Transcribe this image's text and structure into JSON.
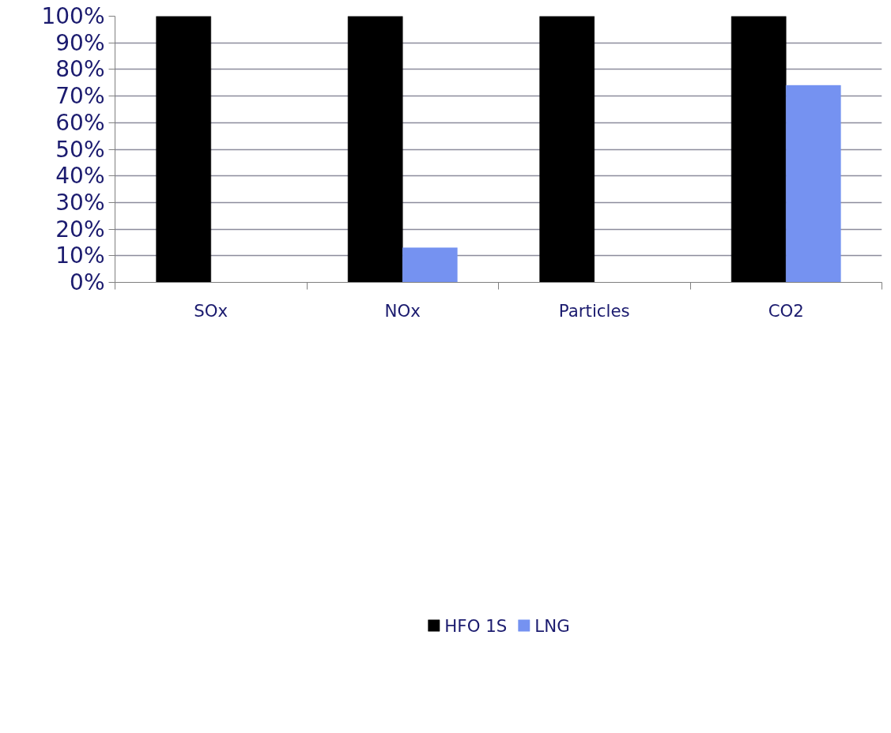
{
  "chart_data": {
    "type": "bar",
    "categories": [
      "SOx",
      "NOx",
      "Particles",
      "CO2"
    ],
    "series": [
      {
        "name": "HFO 1S",
        "color": "#000000",
        "values": [
          100,
          100,
          100,
          100
        ]
      },
      {
        "name": "LNG",
        "color": "#7592f1",
        "values": [
          0,
          13,
          0,
          74
        ]
      }
    ],
    "ylim": [
      0,
      100
    ],
    "yticks": [
      {
        "value": 0,
        "label": "0%"
      },
      {
        "value": 10,
        "label": "10%"
      },
      {
        "value": 20,
        "label": "20%"
      },
      {
        "value": 30,
        "label": "30%"
      },
      {
        "value": 40,
        "label": "40%"
      },
      {
        "value": 50,
        "label": "50%"
      },
      {
        "value": 60,
        "label": "60%"
      },
      {
        "value": 70,
        "label": "70%"
      },
      {
        "value": 80,
        "label": "80%"
      },
      {
        "value": 90,
        "label": "90%"
      },
      {
        "value": 100,
        "label": "100%"
      }
    ],
    "grid": "y",
    "legend": "bottom"
  }
}
